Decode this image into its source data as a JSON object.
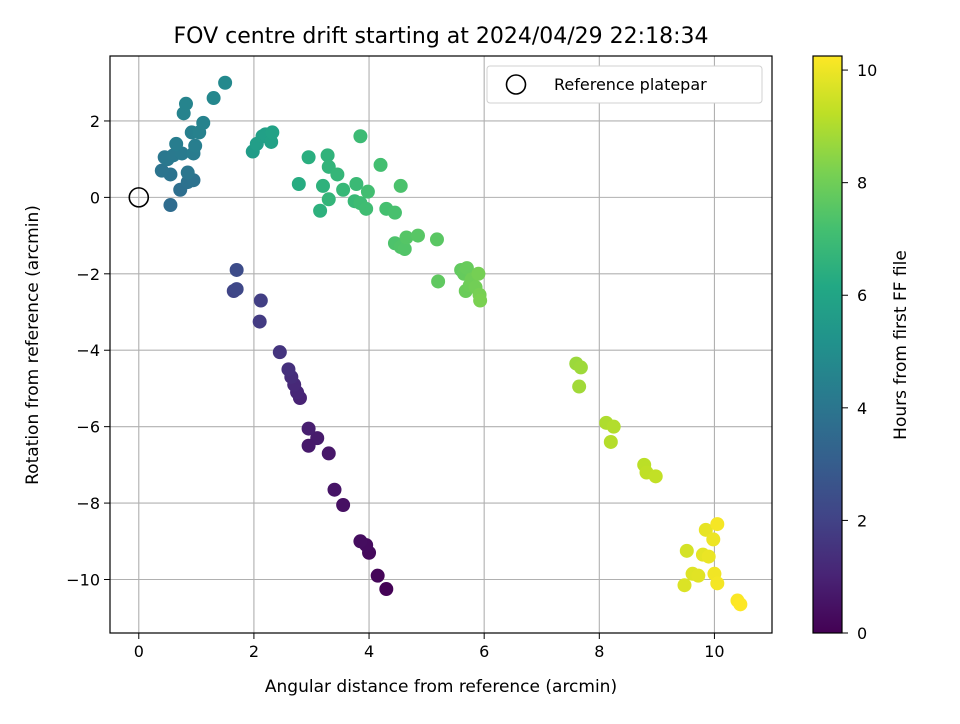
{
  "chart_data": {
    "type": "scatter",
    "title": "FOV centre drift starting at 2024/04/29 22:18:34",
    "xlabel": "Angular distance from reference (arcmin)",
    "ylabel": "Rotation from reference (arcmin)",
    "xlim": [
      -0.5,
      11.0
    ],
    "ylim": [
      -11.4,
      3.7
    ],
    "xticks": [
      0,
      2,
      4,
      6,
      8,
      10
    ],
    "yticks": [
      -10,
      -8,
      -6,
      -4,
      -2,
      0,
      2
    ],
    "grid": true,
    "colormap": "viridis",
    "colorbar": {
      "label": "Hours from first FF file",
      "range": [
        0,
        10.25
      ],
      "ticks": [
        0,
        2,
        4,
        6,
        8,
        10
      ]
    },
    "reference": {
      "label": "Reference platepar",
      "x": 0,
      "y": 0
    },
    "legend_position": "top-right",
    "points": [
      {
        "x": 4.3,
        "y": -10.25,
        "c": 0.05
      },
      {
        "x": 4.15,
        "y": -9.9,
        "c": 0.15
      },
      {
        "x": 4.0,
        "y": -9.3,
        "c": 0.25
      },
      {
        "x": 3.95,
        "y": -9.1,
        "c": 0.3
      },
      {
        "x": 3.85,
        "y": -9.0,
        "c": 0.35
      },
      {
        "x": 3.55,
        "y": -8.05,
        "c": 0.45
      },
      {
        "x": 3.4,
        "y": -7.65,
        "c": 0.55
      },
      {
        "x": 3.3,
        "y": -6.7,
        "c": 0.65
      },
      {
        "x": 3.1,
        "y": -6.3,
        "c": 0.75
      },
      {
        "x": 2.95,
        "y": -6.5,
        "c": 0.7
      },
      {
        "x": 2.95,
        "y": -6.05,
        "c": 0.85
      },
      {
        "x": 2.8,
        "y": -5.25,
        "c": 1.0
      },
      {
        "x": 2.75,
        "y": -5.1,
        "c": 1.1
      },
      {
        "x": 2.7,
        "y": -4.9,
        "c": 1.2
      },
      {
        "x": 2.65,
        "y": -4.7,
        "c": 1.3
      },
      {
        "x": 2.6,
        "y": -4.5,
        "c": 1.4
      },
      {
        "x": 2.45,
        "y": -4.05,
        "c": 1.55
      },
      {
        "x": 2.1,
        "y": -3.25,
        "c": 1.75
      },
      {
        "x": 2.12,
        "y": -2.7,
        "c": 1.9
      },
      {
        "x": 1.65,
        "y": -2.45,
        "c": 2.1
      },
      {
        "x": 1.7,
        "y": -2.4,
        "c": 2.2
      },
      {
        "x": 1.7,
        "y": -1.9,
        "c": 2.35
      },
      {
        "x": 0.55,
        "y": -0.2,
        "c": 3.6
      },
      {
        "x": 0.72,
        "y": 0.2,
        "c": 3.75
      },
      {
        "x": 0.85,
        "y": 0.4,
        "c": 3.8
      },
      {
        "x": 0.95,
        "y": 0.45,
        "c": 3.85
      },
      {
        "x": 0.55,
        "y": 0.6,
        "c": 3.9
      },
      {
        "x": 0.4,
        "y": 0.7,
        "c": 3.95
      },
      {
        "x": 0.85,
        "y": 0.65,
        "c": 4.0
      },
      {
        "x": 0.45,
        "y": 1.05,
        "c": 4.05
      },
      {
        "x": 0.5,
        "y": 1.0,
        "c": 4.1
      },
      {
        "x": 0.6,
        "y": 1.1,
        "c": 4.15
      },
      {
        "x": 0.75,
        "y": 1.15,
        "c": 4.2
      },
      {
        "x": 0.95,
        "y": 1.15,
        "c": 4.25
      },
      {
        "x": 0.65,
        "y": 1.4,
        "c": 4.3
      },
      {
        "x": 0.98,
        "y": 1.35,
        "c": 4.35
      },
      {
        "x": 0.92,
        "y": 1.7,
        "c": 4.4
      },
      {
        "x": 1.05,
        "y": 1.7,
        "c": 4.45
      },
      {
        "x": 1.12,
        "y": 1.95,
        "c": 4.5
      },
      {
        "x": 0.78,
        "y": 2.2,
        "c": 4.55
      },
      {
        "x": 0.82,
        "y": 2.45,
        "c": 4.6
      },
      {
        "x": 1.3,
        "y": 2.6,
        "c": 4.7
      },
      {
        "x": 1.5,
        "y": 3.0,
        "c": 4.8
      },
      {
        "x": 1.98,
        "y": 1.2,
        "c": 5.6
      },
      {
        "x": 2.05,
        "y": 1.4,
        "c": 5.7
      },
      {
        "x": 2.15,
        "y": 1.6,
        "c": 5.75
      },
      {
        "x": 2.2,
        "y": 1.65,
        "c": 5.8
      },
      {
        "x": 2.3,
        "y": 1.45,
        "c": 5.85
      },
      {
        "x": 2.32,
        "y": 1.7,
        "c": 5.9
      },
      {
        "x": 2.78,
        "y": 0.35,
        "c": 6.3
      },
      {
        "x": 2.95,
        "y": 1.05,
        "c": 6.4
      },
      {
        "x": 3.15,
        "y": -0.35,
        "c": 6.5
      },
      {
        "x": 3.2,
        "y": 0.3,
        "c": 6.55
      },
      {
        "x": 3.28,
        "y": 1.1,
        "c": 6.6
      },
      {
        "x": 3.3,
        "y": 0.8,
        "c": 6.65
      },
      {
        "x": 3.3,
        "y": -0.05,
        "c": 6.7
      },
      {
        "x": 3.45,
        "y": 0.6,
        "c": 6.75
      },
      {
        "x": 3.55,
        "y": 0.2,
        "c": 6.8
      },
      {
        "x": 3.75,
        "y": -0.1,
        "c": 6.85
      },
      {
        "x": 3.78,
        "y": 0.35,
        "c": 6.9
      },
      {
        "x": 3.85,
        "y": 1.6,
        "c": 6.95
      },
      {
        "x": 3.85,
        "y": -0.15,
        "c": 7.0
      },
      {
        "x": 3.95,
        "y": -0.3,
        "c": 7.05
      },
      {
        "x": 3.98,
        "y": 0.15,
        "c": 7.1
      },
      {
        "x": 4.2,
        "y": 0.85,
        "c": 7.15
      },
      {
        "x": 4.3,
        "y": -0.3,
        "c": 7.2
      },
      {
        "x": 4.45,
        "y": -0.4,
        "c": 7.25
      },
      {
        "x": 4.55,
        "y": 0.3,
        "c": 7.3
      },
      {
        "x": 4.45,
        "y": -1.2,
        "c": 7.35
      },
      {
        "x": 4.55,
        "y": -1.3,
        "c": 7.4
      },
      {
        "x": 4.62,
        "y": -1.35,
        "c": 7.45
      },
      {
        "x": 4.65,
        "y": -1.05,
        "c": 7.5
      },
      {
        "x": 4.85,
        "y": -1.0,
        "c": 7.55
      },
      {
        "x": 5.18,
        "y": -1.1,
        "c": 7.6
      },
      {
        "x": 5.2,
        "y": -2.2,
        "c": 7.7
      },
      {
        "x": 5.6,
        "y": -1.9,
        "c": 7.75
      },
      {
        "x": 5.65,
        "y": -2.0,
        "c": 7.8
      },
      {
        "x": 5.7,
        "y": -1.85,
        "c": 7.85
      },
      {
        "x": 5.68,
        "y": -2.45,
        "c": 7.9
      },
      {
        "x": 5.75,
        "y": -2.3,
        "c": 7.95
      },
      {
        "x": 5.78,
        "y": -2.15,
        "c": 8.0
      },
      {
        "x": 5.85,
        "y": -2.35,
        "c": 8.05
      },
      {
        "x": 5.9,
        "y": -2.0,
        "c": 8.1
      },
      {
        "x": 5.92,
        "y": -2.55,
        "c": 8.15
      },
      {
        "x": 5.93,
        "y": -2.7,
        "c": 8.2
      },
      {
        "x": 7.6,
        "y": -4.35,
        "c": 8.7
      },
      {
        "x": 7.68,
        "y": -4.45,
        "c": 8.75
      },
      {
        "x": 7.65,
        "y": -4.95,
        "c": 8.8
      },
      {
        "x": 8.12,
        "y": -5.9,
        "c": 9.0
      },
      {
        "x": 8.25,
        "y": -6.0,
        "c": 9.05
      },
      {
        "x": 8.2,
        "y": -6.4,
        "c": 9.1
      },
      {
        "x": 8.78,
        "y": -7.0,
        "c": 9.2
      },
      {
        "x": 8.82,
        "y": -7.2,
        "c": 9.25
      },
      {
        "x": 8.98,
        "y": -7.3,
        "c": 9.3
      },
      {
        "x": 9.52,
        "y": -9.25,
        "c": 9.6
      },
      {
        "x": 9.48,
        "y": -10.15,
        "c": 9.7
      },
      {
        "x": 9.62,
        "y": -9.85,
        "c": 9.75
      },
      {
        "x": 9.72,
        "y": -9.9,
        "c": 9.8
      },
      {
        "x": 9.8,
        "y": -9.35,
        "c": 9.85
      },
      {
        "x": 9.85,
        "y": -8.7,
        "c": 9.9
      },
      {
        "x": 9.9,
        "y": -9.4,
        "c": 9.95
      },
      {
        "x": 9.98,
        "y": -8.95,
        "c": 10.0
      },
      {
        "x": 10.0,
        "y": -9.85,
        "c": 10.05
      },
      {
        "x": 10.05,
        "y": -10.1,
        "c": 10.1
      },
      {
        "x": 10.05,
        "y": -8.55,
        "c": 10.12
      },
      {
        "x": 10.4,
        "y": -10.55,
        "c": 10.2
      },
      {
        "x": 10.45,
        "y": -10.65,
        "c": 10.25
      }
    ]
  }
}
